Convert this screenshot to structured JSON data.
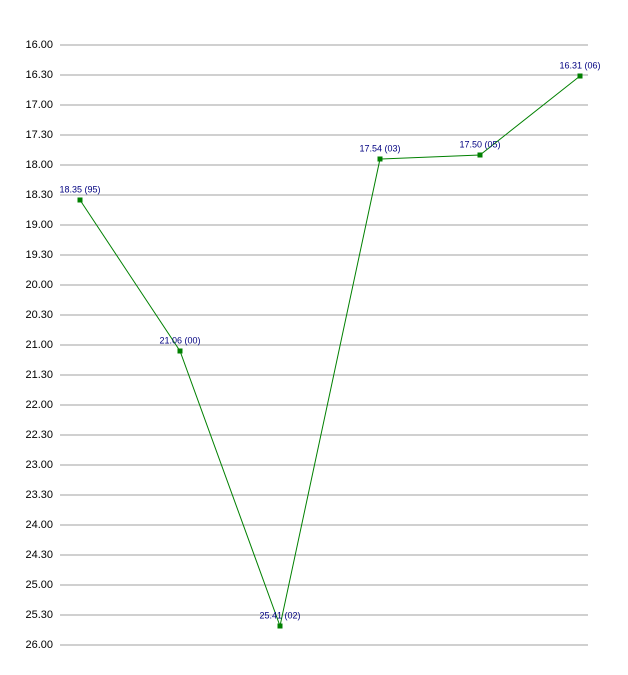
{
  "chart_data": {
    "type": "line",
    "categories": [
      null,
      null,
      null,
      null,
      null,
      null
    ],
    "series": [
      {
        "color": "#008000",
        "values": [
          18.5833,
          21.1,
          25.6833,
          17.9,
          17.8333,
          16.5167
        ],
        "value_labels": [
          "18.35 (95)",
          "21.06 (00)",
          "25.41 (02)",
          "17.54 (03)",
          "17.50 (05)",
          "16.31 (06)"
        ]
      }
    ],
    "ylim": [
      16,
      26
    ],
    "y_inverted": true,
    "yticks": [
      {
        "value": 16,
        "label": "16.00"
      },
      {
        "value": 16.5,
        "label": "16.30"
      },
      {
        "value": 17,
        "label": "17.00"
      },
      {
        "value": 17.5,
        "label": "17.30"
      },
      {
        "value": 18,
        "label": "18.00"
      },
      {
        "value": 18.5,
        "label": "18.30"
      },
      {
        "value": 19,
        "label": "19.00"
      },
      {
        "value": 19.5,
        "label": "19.30"
      },
      {
        "value": 20,
        "label": "20.00"
      },
      {
        "value": 20.5,
        "label": "20.30"
      },
      {
        "value": 21,
        "label": "21.00"
      },
      {
        "value": 21.5,
        "label": "21.30"
      },
      {
        "value": 22,
        "label": "22.00"
      },
      {
        "value": 22.5,
        "label": "22.30"
      },
      {
        "value": 23,
        "label": "23.00"
      },
      {
        "value": 23.5,
        "label": "23.30"
      },
      {
        "value": 24,
        "label": "24.00"
      },
      {
        "value": 24.5,
        "label": "24.30"
      },
      {
        "value": 25,
        "label": "25.00"
      },
      {
        "value": 25.5,
        "label": "25.30"
      },
      {
        "value": 26,
        "label": "26.00"
      }
    ],
    "grid": true
  }
}
